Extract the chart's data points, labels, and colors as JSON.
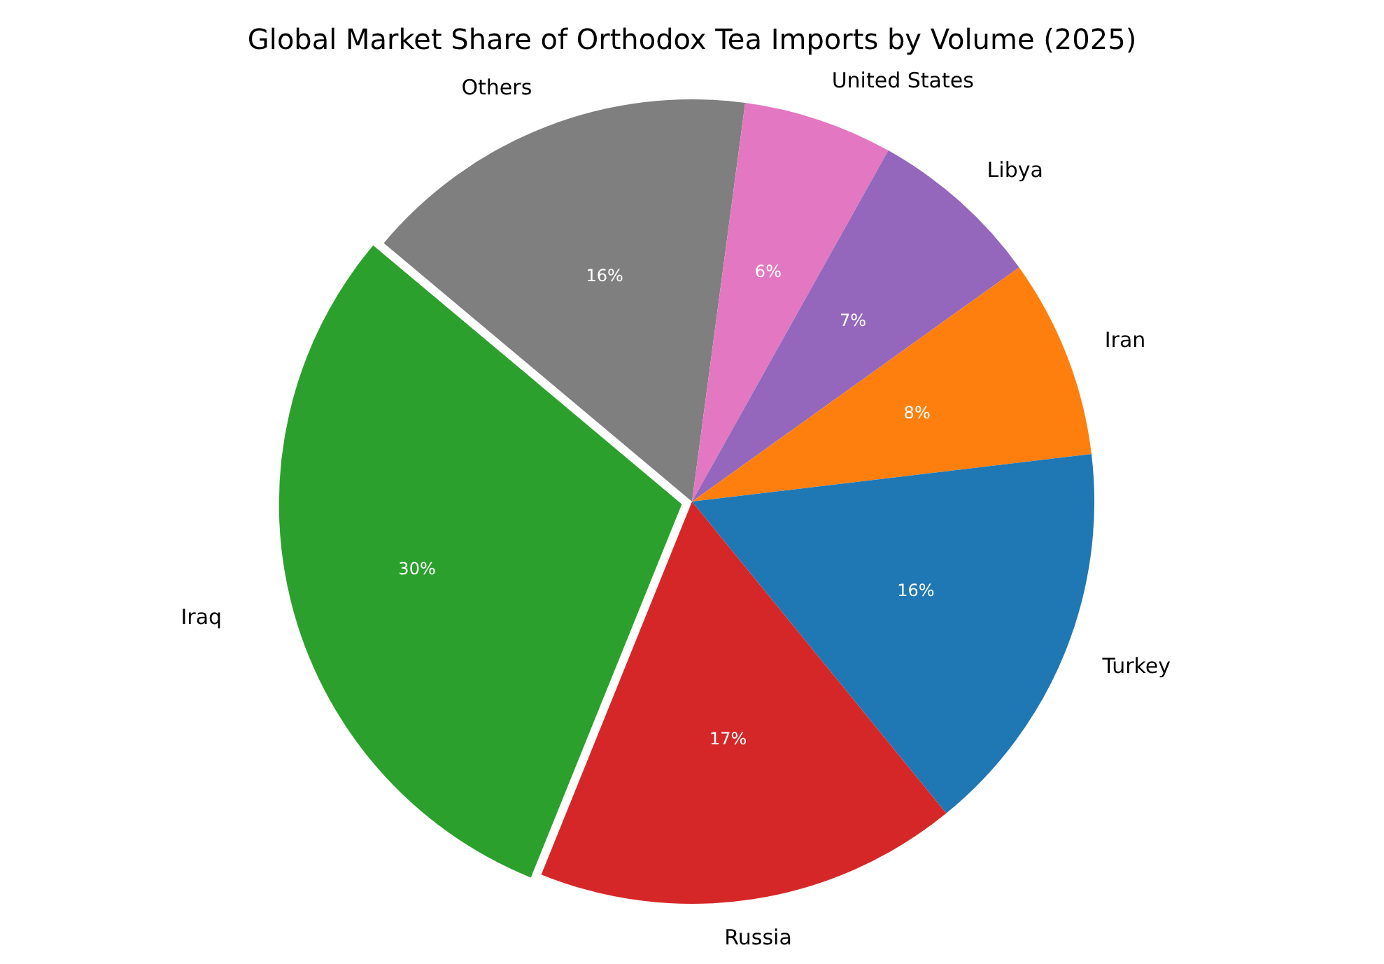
{
  "chart_data": {
    "type": "pie",
    "title": "Global Market Share of Orthodox Tea Imports by Volume (2025)",
    "categories": [
      "Iraq",
      "Russia",
      "Turkey",
      "Iran",
      "Libya",
      "United States",
      "Others"
    ],
    "values": [
      30,
      17,
      16,
      8,
      7,
      6,
      16
    ],
    "colors": [
      "#2ca02c",
      "#d62728",
      "#1f77b4",
      "#ff7f0e",
      "#9467bd",
      "#e377c2",
      "#7f7f7f"
    ],
    "value_labels": [
      "30%",
      "17%",
      "16%",
      "8%",
      "7%",
      "6%",
      "16%"
    ],
    "legend": false
  }
}
